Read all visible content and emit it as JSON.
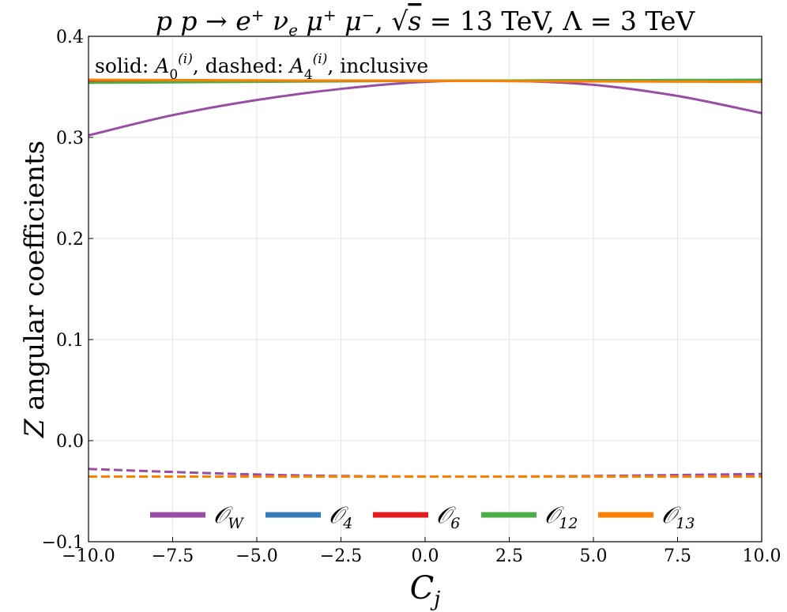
{
  "chart_data": {
    "type": "line",
    "title": "p p → e⁺ ν_e μ⁺ μ⁻, √s = 13 TeV, Λ = 3 TeV",
    "annotation": "solid: A0(i), dashed: A4(i), inclusive",
    "xlabel": "C_j",
    "ylabel": "Z angular coefficients",
    "xlim": [
      -10.0,
      10.0
    ],
    "ylim": [
      -0.1,
      0.4
    ],
    "xticks": [
      -10.0,
      -7.5,
      -5.0,
      -2.5,
      0.0,
      2.5,
      5.0,
      7.5,
      10.0
    ],
    "xtick_labels": [
      "−10.0",
      "−7.5",
      "−5.0",
      "−2.5",
      "0.0",
      "2.5",
      "5.0",
      "7.5",
      "10.0"
    ],
    "yticks": [
      -0.1,
      0.0,
      0.1,
      0.2,
      0.3,
      0.4
    ],
    "ytick_labels": [
      "−0.1",
      "0.0",
      "0.1",
      "0.2",
      "0.3",
      "0.4"
    ],
    "grid": true,
    "legend_position": "bottom-center",
    "x": [
      -10,
      -7.5,
      -5,
      -2.5,
      0,
      2.5,
      5,
      7.5,
      10
    ],
    "series": [
      {
        "name": "𝒪_W",
        "coefficient": "A0",
        "style": "solid",
        "color": "#984ea3",
        "values": [
          0.302,
          0.322,
          0.337,
          0.348,
          0.355,
          0.356,
          0.352,
          0.341,
          0.324
        ]
      },
      {
        "name": "𝒪_4",
        "coefficient": "A0",
        "style": "solid",
        "color": "#377eb8",
        "values": [
          0.356,
          0.356,
          0.356,
          0.356,
          0.356,
          0.356,
          0.356,
          0.356,
          0.356
        ]
      },
      {
        "name": "𝒪_6",
        "coefficient": "A0",
        "style": "solid",
        "color": "#e41a1c",
        "values": [
          0.356,
          0.356,
          0.356,
          0.356,
          0.356,
          0.356,
          0.356,
          0.356,
          0.356
        ]
      },
      {
        "name": "𝒪_12",
        "coefficient": "A0",
        "style": "solid",
        "color": "#4daf4a",
        "values": [
          0.354,
          0.3545,
          0.355,
          0.3555,
          0.356,
          0.3563,
          0.3566,
          0.3568,
          0.357
        ]
      },
      {
        "name": "𝒪_13",
        "coefficient": "A0",
        "style": "solid",
        "color": "#ff7f00",
        "values": [
          0.357,
          0.3567,
          0.3564,
          0.3562,
          0.356,
          0.3557,
          0.3554,
          0.3552,
          0.355
        ]
      },
      {
        "name": "𝒪_W",
        "coefficient": "A4",
        "style": "dashed",
        "color": "#984ea3",
        "values": [
          -0.028,
          -0.031,
          -0.0335,
          -0.035,
          -0.0355,
          -0.0355,
          -0.035,
          -0.034,
          -0.033
        ]
      },
      {
        "name": "𝒪_4",
        "coefficient": "A4",
        "style": "dashed",
        "color": "#377eb8",
        "values": [
          -0.0355,
          -0.0355,
          -0.0355,
          -0.0355,
          -0.0355,
          -0.0355,
          -0.0355,
          -0.0355,
          -0.0355
        ]
      },
      {
        "name": "𝒪_6",
        "coefficient": "A4",
        "style": "dashed",
        "color": "#e41a1c",
        "values": [
          -0.0355,
          -0.0355,
          -0.0355,
          -0.0355,
          -0.0355,
          -0.0355,
          -0.0355,
          -0.0355,
          -0.0355
        ]
      },
      {
        "name": "𝒪_12",
        "coefficient": "A4",
        "style": "dashed",
        "color": "#4daf4a",
        "values": [
          -0.0355,
          -0.0355,
          -0.0355,
          -0.0355,
          -0.0355,
          -0.0355,
          -0.0355,
          -0.0355,
          -0.0355
        ]
      },
      {
        "name": "𝒪_13",
        "coefficient": "A4",
        "style": "dashed",
        "color": "#ff7f00",
        "values": [
          -0.0355,
          -0.0355,
          -0.0355,
          -0.0355,
          -0.0355,
          -0.0355,
          -0.0355,
          -0.0355,
          -0.0355
        ]
      }
    ],
    "legend": [
      {
        "label": "𝒪_W",
        "color": "#984ea3"
      },
      {
        "label": "𝒪_4",
        "color": "#377eb8"
      },
      {
        "label": "𝒪_6",
        "color": "#e41a1c"
      },
      {
        "label": "𝒪_12",
        "color": "#4daf4a"
      },
      {
        "label": "𝒪_13",
        "color": "#ff7f00"
      }
    ]
  }
}
